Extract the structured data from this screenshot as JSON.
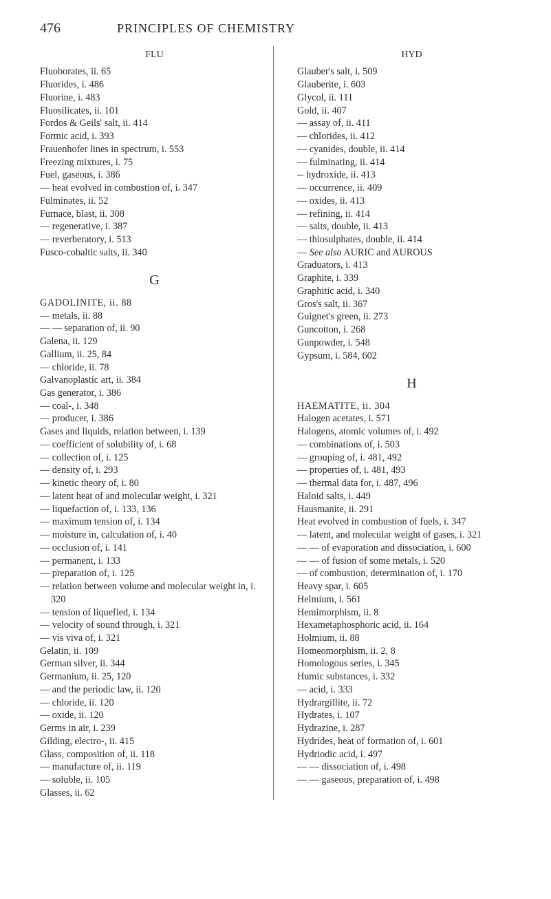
{
  "header": {
    "page_number": "476",
    "book_title": "PRINCIPLES OF CHEMISTRY"
  },
  "left": {
    "running_head": "FLU",
    "entries_a": [
      "Fluoborates, ii. 65",
      "Fluorides, i. 486",
      "Fluorine, i. 483",
      "Fluosilicates, ii. 101",
      "Fordos & Geils' salt, ii. 414",
      "Formic acid, i. 393",
      "Frauenhofer lines in spectrum, i. 553",
      "Freezing mixtures, i. 75",
      "Fuel, gaseous, i. 386",
      "— heat evolved in combustion of, i. 347",
      "Fulminates, ii. 52",
      "Furnace, blast, ii. 308",
      "— regenerative, i. 387",
      "— reverberatory, i. 513",
      "Fusco-cobaltic salts, ii. 340"
    ],
    "section_g": "G",
    "g_head": "GADOLINITE, ii. 88",
    "entries_g": [
      "— metals, ii. 88",
      "— — separation of, ii. 90",
      "Galena, ii. 129",
      "Gallium, ii. 25, 84",
      "— chloride, ii. 78",
      "Galvanoplastic art, ii. 384",
      "Gas generator, i. 386",
      "— coal-, i. 348",
      "— producer, i. 386",
      "Gases and liquids, relation between, i. 139",
      "— coefficient of solubility of, i. 68",
      "— collection of, i. 125",
      "— density of, i. 293",
      "— kinetic theory of, i. 80",
      "— latent heat of and molecular weight, i. 321",
      "— liquefaction of, i. 133, 136",
      "— maximum tension of, i. 134",
      "— moisture in, calculation of, i. 40",
      "— occlusion of, i. 141",
      "— permanent, i. 133",
      "— preparation of, i. 125",
      "— relation between volume and molecular weight in, i. 320",
      "— tension of liquefied, i. 134",
      "— velocity of sound through, i. 321",
      "— vis viva of, i. 321",
      "Gelatin, ii. 109",
      "German silver, ii. 344",
      "Germanium, ii. 25, 120",
      "— and the periodic law, ii. 120",
      "— chloride, ii. 120",
      "— oxide, ii. 120",
      "Germs in air, i. 239",
      "Gilding, electro-, ii. 415",
      "Glass, composition of, ii. 118",
      "— manufacture of, ii. 119",
      "— soluble, ii. 105",
      "Glasses, ii. 62"
    ]
  },
  "right": {
    "running_head": "HYD",
    "entries_b": [
      "Glauber's salt, i. 509",
      "Glauberite, i. 603",
      "Glycol, ii. 111",
      "Gold, ii. 407",
      "— assay of, ii. 411",
      "— chlorides, ii. 412",
      "— cyanides, double, ii. 414",
      "— fulminating, ii. 414",
      "-- hydroxide, ii. 413",
      "— occurrence, ii. 409",
      "— oxides, ii. 413",
      "— refining, ii. 414",
      "— salts, double, ii. 413",
      "— thiosulphates, double, ii. 414"
    ],
    "see_also_line": "— See also AURIC and AUROUS",
    "entries_b2": [
      "Graduators, i. 413",
      "Graphite, i. 339",
      "Graphitic acid, i. 340",
      "Gros's salt, ii. 367",
      "Guignet's green, ii. 273",
      "Guncotton, i. 268",
      "Gunpowder, i. 548",
      "Gypsum, i. 584, 602"
    ],
    "section_h": "H",
    "h_head": "HAEMATITE, ii. 304",
    "entries_h": [
      "Halogen acetates, i. 571",
      "Halogens, atomic volumes of, i. 492",
      "— combinations of, i. 503",
      "— grouping of, i. 481, 492",
      "— properties of, i. 481, 493",
      "— thermal data for, i. 487, 496",
      "Haloid salts, i. 449",
      "Hausmanite, ii. 291",
      "Heat evolved in combustion of fuels, i. 347",
      "— latent, and molecular weight of gases, i. 321",
      "— — of evaporation and dissociation, i. 600",
      "— — of fusion of some metals, i. 520",
      "— of combustion, determination of, i. 170",
      "Heavy spar, i. 605",
      "Helmium, i. 561",
      "Hemimorphism, ii. 8",
      "Hexametaphosphoric acid, ii. 164",
      "Holmium, ii. 88",
      "Homeomorphism, ii. 2, 8",
      "Homologous series, i. 345",
      "Humic substances, i. 332",
      "— acid, i. 333",
      "Hydrargillite, ii. 72",
      "Hydrates, i. 107",
      "Hydrazine, i. 287",
      "Hydrides, heat of formation of, i. 601",
      "Hydriodic acid, i. 497",
      "— — dissociation of, i. 498",
      "— — gaseous, preparation of, i. 498"
    ]
  }
}
